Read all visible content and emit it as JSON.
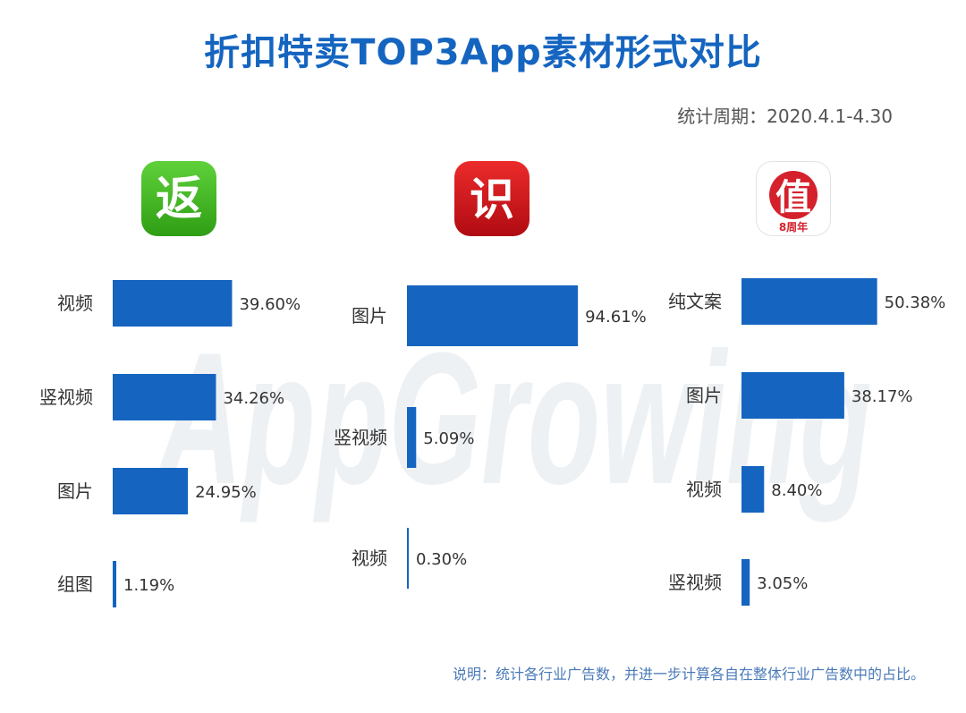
{
  "title": "折扣特卖TOP3App素材形式对比",
  "period": "统计周期：2020.4.1-4.30",
  "note": "说明：统计各行业广告数，并进一步计算各自在整体行业广告数中的占比。",
  "watermark": "AppGrowing",
  "colors": {
    "title": "#1565c0",
    "bar": "#1565c0",
    "label": "#333333",
    "note": "#4a7ab8",
    "watermark": "#eef1f4"
  },
  "icons": [
    {
      "name": "fanli-app-icon",
      "glyph": "返",
      "bg": "#3cb51d"
    },
    {
      "name": "zhi-app-icon",
      "glyph": "识",
      "bg": "#d0121b"
    },
    {
      "name": "smzdm-app-icon",
      "glyph": "值",
      "badge": "8周年",
      "bg": "#ffffff"
    }
  ],
  "chart_data": [
    {
      "type": "bar",
      "orientation": "horizontal",
      "categories": [
        "视频",
        "竖视频",
        "图片",
        "组图"
      ],
      "values": [
        39.6,
        34.26,
        24.95,
        1.19
      ],
      "value_labels": [
        "39.60%",
        "34.26%",
        "24.95%",
        "1.19%"
      ],
      "xlim": [
        0,
        100
      ]
    },
    {
      "type": "bar",
      "orientation": "horizontal",
      "categories": [
        "图片",
        "竖视频",
        "视频"
      ],
      "values": [
        94.61,
        5.09,
        0.3
      ],
      "value_labels": [
        "94.61%",
        "5.09%",
        "0.30%"
      ],
      "xlim": [
        0,
        100
      ]
    },
    {
      "type": "bar",
      "orientation": "horizontal",
      "categories": [
        "纯文案",
        "图片",
        "视频",
        "竖视频"
      ],
      "values": [
        50.38,
        38.17,
        8.4,
        3.05
      ],
      "value_labels": [
        "50.38%",
        "38.17%",
        "8.40%",
        "3.05%"
      ],
      "xlim": [
        0,
        100
      ]
    }
  ]
}
